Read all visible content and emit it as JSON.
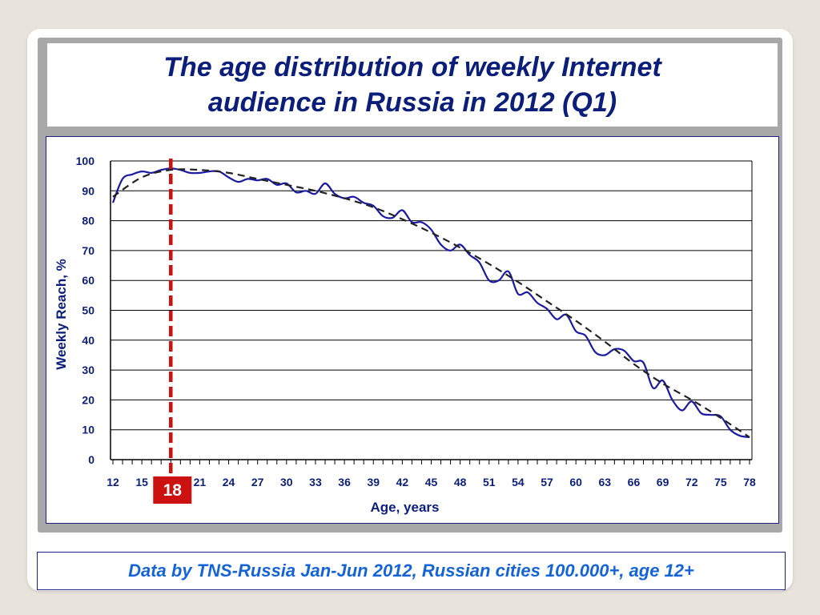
{
  "slide": {
    "title": "The age distribution of weekly Internet audience in Russia in 2012 (Q1)",
    "footer": "Data by TNS-Russia Jan-Jun 2012, Russian cities 100.000+, age 12+"
  },
  "colors": {
    "title": "#0b1e7a",
    "series": "#1a1aa0",
    "trend": "#222222",
    "marker": "#cc1111",
    "footer": "#1464d8",
    "gridline": "#000000"
  },
  "chart_data": {
    "type": "line",
    "title": "",
    "xlabel": "Age, years",
    "ylabel": "Weekly Reach, %",
    "xlim": [
      12,
      78
    ],
    "ylim": [
      0,
      100
    ],
    "y_ticks": [
      0,
      10,
      20,
      30,
      40,
      50,
      60,
      70,
      80,
      90,
      100
    ],
    "x_tick_labels": [
      "12",
      "15",
      "18",
      "21",
      "24",
      "27",
      "30",
      "33",
      "36",
      "39",
      "42",
      "45",
      "48",
      "51",
      "54",
      "57",
      "60",
      "63",
      "66",
      "69",
      "72",
      "75",
      "78"
    ],
    "grid": true,
    "legend": "none",
    "series": [
      {
        "x": [
          12,
          13,
          14,
          15,
          16,
          17,
          18,
          19,
          20,
          21,
          22,
          23,
          24,
          25,
          26,
          27,
          28,
          29,
          30,
          31,
          32,
          33,
          34,
          35,
          36,
          37,
          38,
          39,
          40,
          41,
          42,
          43,
          44,
          45,
          46,
          47,
          48,
          49,
          50,
          51,
          52,
          53,
          54,
          55,
          56,
          57,
          58,
          59,
          60,
          61,
          62,
          63,
          64,
          65,
          66,
          67,
          68,
          69,
          70,
          71,
          72,
          73,
          74,
          75,
          76,
          77,
          78
        ],
        "values": [
          86,
          94,
          95.5,
          96.5,
          96,
          97,
          97.5,
          97,
          96,
          96,
          96.5,
          96.5,
          94.5,
          93,
          94,
          93.5,
          94,
          92,
          92.5,
          89.5,
          90,
          89,
          92.5,
          89,
          87.5,
          88,
          86,
          85,
          81.5,
          81,
          83.5,
          79.5,
          79.5,
          77,
          72,
          70,
          72,
          68.5,
          66,
          60,
          60,
          63,
          55.5,
          56,
          52.5,
          50.5,
          47,
          48.5,
          43,
          41.5,
          36,
          35,
          37,
          36.5,
          33,
          32.5,
          24,
          26.5,
          20,
          16.5,
          19.5,
          15.5,
          15,
          14.5,
          10,
          8,
          7.5
        ]
      }
    ],
    "trend": {
      "style": "dashed",
      "x": [
        12,
        15,
        18,
        21,
        24,
        27,
        30,
        33,
        36,
        39,
        42,
        45,
        48,
        51,
        54,
        57,
        60,
        63,
        66,
        69,
        72,
        75,
        78
      ],
      "values": [
        88,
        94.5,
        97,
        97,
        96,
        94,
        92,
        90,
        87.5,
        84.5,
        80.5,
        76,
        71,
        65.5,
        59.5,
        53,
        46.5,
        39.5,
        32,
        25.5,
        20,
        14,
        7.5
      ]
    },
    "marker_line": {
      "x": 18,
      "label": "18",
      "style": "dashed"
    }
  }
}
